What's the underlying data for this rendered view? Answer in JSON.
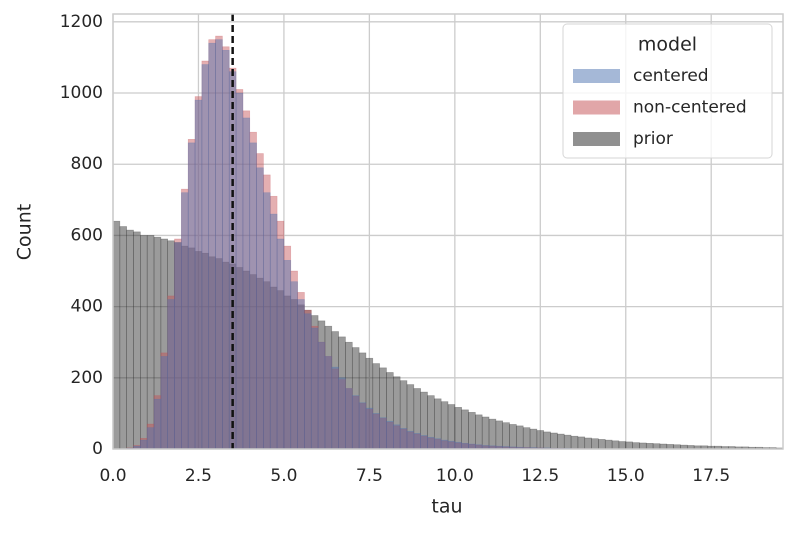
{
  "chart_data": {
    "type": "histogram",
    "x_label": "tau",
    "y_label": "Count",
    "legend_title": "model",
    "legend": "upper right",
    "grid": true,
    "xlim": [
      0,
      19.6
    ],
    "ylim": [
      0,
      1222
    ],
    "xticks": [
      {
        "value": 0,
        "label": "0.0"
      },
      2.5,
      {
        "value": 5,
        "label": "5.0"
      },
      7.5,
      {
        "value": 10,
        "label": "10.0"
      },
      12.5,
      {
        "value": 15,
        "label": "15.0"
      },
      17.5
    ],
    "yticks": [
      0,
      200,
      400,
      600,
      800,
      1000,
      1200
    ],
    "vline": 3.5,
    "vline_color": "#111111",
    "bins": [
      0,
      0.2,
      0.4,
      0.6,
      0.8,
      1,
      1.2,
      1.4,
      1.6,
      1.8,
      2,
      2.2,
      2.4,
      2.6,
      2.8,
      3,
      3.2,
      3.4,
      3.6,
      3.8,
      4,
      4.2,
      4.4,
      4.6,
      4.8,
      5,
      5.2,
      5.4,
      5.6,
      5.8,
      6,
      6.2,
      6.4,
      6.6,
      6.8,
      7,
      7.2,
      7.4,
      7.6,
      7.8,
      8,
      8.2,
      8.4,
      8.6,
      8.8,
      9,
      9.2,
      9.4,
      9.6,
      9.8,
      10,
      10.2,
      10.4,
      10.6,
      10.8,
      11,
      11.2,
      11.4,
      11.6,
      11.8,
      12,
      12.2,
      12.4,
      12.6,
      12.8,
      13,
      13.2,
      13.4,
      13.6,
      13.8,
      14,
      14.2,
      14.4,
      14.6,
      14.8,
      15,
      15.2,
      15.4,
      15.6,
      15.8,
      16,
      16.2,
      16.4,
      16.6,
      16.8,
      17,
      17.2,
      17.4,
      17.6,
      17.8,
      18,
      18.2,
      18.4,
      18.6,
      18.8,
      19,
      19.2,
      19.4,
      19.6
    ],
    "series": [
      {
        "name": "centered",
        "color": "#4c72b0",
        "values": [
          0,
          0,
          2,
          8,
          25,
          60,
          140,
          260,
          420,
          580,
          720,
          860,
          980,
          1080,
          1140,
          1150,
          1120,
          1060,
          1000,
          930,
          860,
          790,
          720,
          660,
          590,
          530,
          470,
          420,
          380,
          340,
          300,
          260,
          230,
          200,
          170,
          150,
          130,
          115,
          100,
          88,
          78,
          68,
          58,
          50,
          44,
          38,
          33,
          29,
          25,
          22,
          19,
          16,
          14,
          12,
          10,
          9,
          8,
          7,
          6,
          5,
          4,
          4,
          3,
          3,
          2,
          2,
          2,
          1,
          1,
          1,
          0,
          0,
          0,
          0,
          0,
          0,
          0,
          0,
          0,
          0,
          0,
          0,
          0,
          0,
          0,
          0,
          0,
          0,
          0,
          0,
          0,
          0,
          0,
          0,
          0,
          0,
          0,
          0
        ]
      },
      {
        "name": "non-centered",
        "color": "#c44e52",
        "values": [
          0,
          0,
          3,
          10,
          30,
          70,
          150,
          270,
          430,
          590,
          730,
          870,
          990,
          1090,
          1150,
          1160,
          1130,
          1070,
          1010,
          950,
          890,
          830,
          770,
          710,
          640,
          570,
          500,
          440,
          390,
          345,
          300,
          260,
          225,
          195,
          170,
          148,
          128,
          112,
          98,
          86,
          75,
          65,
          56,
          48,
          42,
          36,
          31,
          27,
          23,
          20,
          17,
          15,
          13,
          11,
          9,
          8,
          7,
          6,
          5,
          4,
          4,
          3,
          3,
          2,
          2,
          2,
          1,
          1,
          1,
          1,
          0,
          0,
          0,
          0,
          0,
          0,
          0,
          0,
          0,
          0,
          0,
          0,
          0,
          0,
          0,
          0,
          0,
          0,
          0,
          0,
          0,
          0,
          0,
          0,
          0,
          0,
          0,
          0
        ]
      },
      {
        "name": "prior",
        "color": "#222222",
        "values": [
          640,
          625,
          615,
          610,
          600,
          600,
          595,
          590,
          585,
          580,
          570,
          565,
          555,
          550,
          540,
          535,
          525,
          520,
          510,
          500,
          490,
          480,
          470,
          455,
          445,
          430,
          420,
          405,
          390,
          375,
          360,
          345,
          330,
          315,
          300,
          285,
          270,
          255,
          240,
          228,
          215,
          203,
          192,
          181,
          170,
          160,
          150,
          141,
          133,
          125,
          117,
          110,
          103,
          96,
          90,
          84,
          79,
          74,
          69,
          65,
          60,
          56,
          52,
          48,
          45,
          42,
          39,
          36,
          34,
          31,
          29,
          27,
          25,
          23,
          21,
          20,
          18,
          17,
          16,
          15,
          14,
          13,
          12,
          11,
          10,
          9,
          9,
          8,
          8,
          7,
          7,
          6,
          6,
          5,
          5,
          4,
          4,
          3
        ]
      }
    ]
  }
}
